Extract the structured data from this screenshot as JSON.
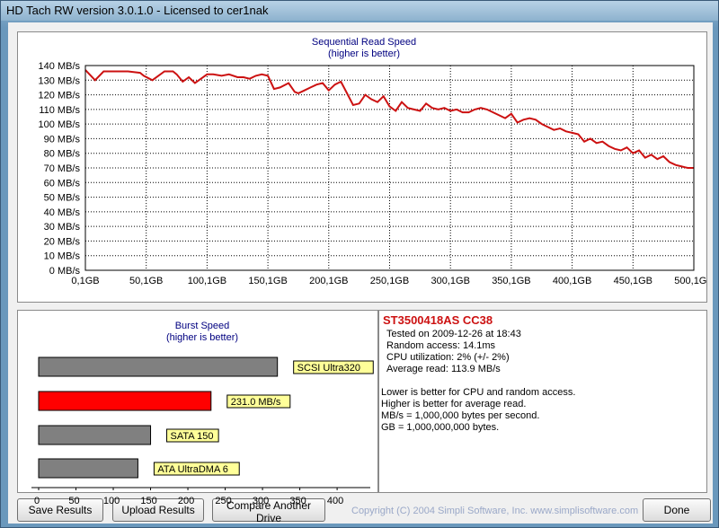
{
  "window": {
    "title": "HD Tach RW version 3.0.1.0 - Licensed to cer1nak"
  },
  "sequential": {
    "title": "Sequential Read Speed",
    "subtitle": "(higher is better)",
    "line_color": "#cc1111"
  },
  "burst": {
    "title": "Burst Speed",
    "subtitle": "(higher is better)"
  },
  "info": {
    "drive": "ST3500418AS  CC38",
    "tested": "Tested on 2009-12-26 at 18:43",
    "random_access": "Random access: 14.1ms",
    "cpu": "CPU utilization: 2% (+/- 2%)",
    "average": "Average read: 113.9 MB/s",
    "notes": [
      "Lower is better for CPU and random access.",
      "Higher is better for average read.",
      "MB/s = 1,000,000 bytes per second.",
      "GB = 1,000,000,000 bytes."
    ]
  },
  "buttons": {
    "save": "Save Results",
    "upload": "Upload Results",
    "compare": "Compare Another Drive",
    "done": "Done"
  },
  "copyright": "Copyright (C) 2004 Simpli Software, Inc. www.simplisoftware.com",
  "chart_data": [
    {
      "type": "line",
      "title": "Sequential Read Speed",
      "subtitle": "(higher is better)",
      "xlabel": "",
      "ylabel": "",
      "xlim": [
        0,
        500
      ],
      "ylim": [
        0,
        140
      ],
      "x_ticks": [
        0,
        50,
        100,
        150,
        200,
        250,
        300,
        350,
        400,
        450,
        500
      ],
      "x_tick_labels": [
        "0,1GB",
        "50,1GB",
        "100,1GB",
        "150,1GB",
        "200,1GB",
        "250,1GB",
        "300,1GB",
        "350,1GB",
        "400,1GB",
        "450,1GB",
        "500,1GB"
      ],
      "y_ticks": [
        0,
        10,
        20,
        30,
        40,
        50,
        60,
        70,
        80,
        90,
        100,
        110,
        120,
        130,
        140
      ],
      "y_tick_labels": [
        "0 MB/s",
        "10 MB/s",
        "20 MB/s",
        "30 MB/s",
        "40 MB/s",
        "50 MB/s",
        "60 MB/s",
        "70 MB/s",
        "80 MB/s",
        "90 MB/s",
        "100 MB/s",
        "110 MB/s",
        "120 MB/s",
        "130 MB/s",
        "140 MB/s"
      ],
      "grid": true,
      "x": [
        0,
        8,
        15,
        25,
        35,
        45,
        48,
        55,
        60,
        65,
        72,
        75,
        80,
        85,
        90,
        95,
        100,
        105,
        112,
        118,
        125,
        130,
        135,
        140,
        145,
        150,
        155,
        160,
        167,
        172,
        175,
        180,
        185,
        190,
        195,
        200,
        205,
        210,
        215,
        220,
        225,
        230,
        235,
        240,
        245,
        250,
        255,
        260,
        265,
        270,
        275,
        280,
        285,
        290,
        295,
        300,
        305,
        310,
        315,
        320,
        325,
        330,
        335,
        340,
        345,
        350,
        355,
        360,
        365,
        370,
        375,
        380,
        385,
        390,
        395,
        400,
        405,
        410,
        415,
        420,
        425,
        430,
        435,
        440,
        445,
        450,
        455,
        460,
        465,
        470,
        475,
        480,
        485,
        490,
        495,
        500
      ],
      "series": [
        {
          "values": [
            137,
            130,
            136,
            136,
            136,
            135,
            133,
            130,
            133,
            136,
            136,
            134,
            129,
            132,
            128,
            131,
            134,
            134,
            133,
            134,
            132,
            132,
            131,
            133,
            134,
            133,
            124,
            125,
            128,
            122,
            121,
            123,
            125,
            127,
            128,
            123,
            127,
            129,
            121,
            113,
            114,
            120,
            117,
            115,
            119,
            112,
            109,
            115,
            111,
            110,
            109,
            114,
            111,
            110,
            111,
            109,
            110,
            108,
            108,
            110,
            111,
            110,
            108,
            106,
            104,
            107,
            101,
            103,
            104,
            103,
            100,
            98,
            96,
            97,
            95,
            94,
            93,
            88,
            90,
            87,
            88,
            85,
            83,
            82,
            84,
            80,
            82,
            77,
            79,
            76,
            78,
            74,
            72,
            71,
            70,
            70
          ]
        }
      ]
    },
    {
      "type": "bar",
      "orientation": "horizontal",
      "title": "Burst Speed",
      "subtitle": "(higher is better)",
      "categories": [
        "SCSI Ultra320",
        "231.0 MB/s",
        "SATA 150",
        "ATA UltraDMA 6"
      ],
      "values": [
        320,
        231,
        150,
        133
      ],
      "colors": [
        "#808080",
        "#ff0000",
        "#808080",
        "#808080"
      ],
      "xlim": [
        0,
        430
      ],
      "x_ticks": [
        0,
        50,
        100,
        150,
        200,
        250,
        300,
        350,
        400
      ],
      "x_tick_labels": [
        "0",
        "50",
        "100",
        "150",
        "200",
        "250",
        "300",
        "350",
        "400"
      ],
      "grid": false
    }
  ]
}
